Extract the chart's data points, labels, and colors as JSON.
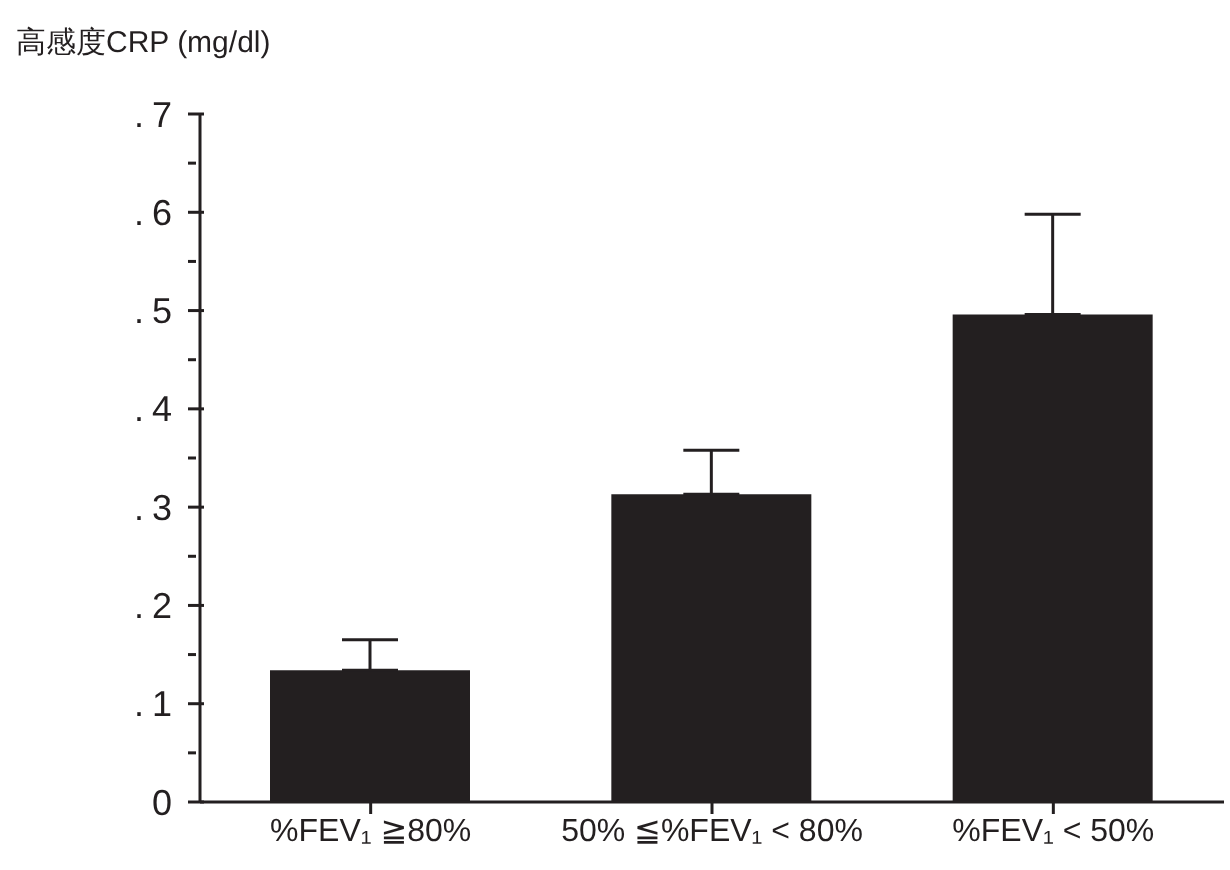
{
  "chart_data": {
    "type": "bar",
    "ylabel": "高感度CRP (mg/dl)",
    "categories": [
      "%FEV₁ ≧80%",
      "50% ≦%FEV₁ < 80%",
      "%FEV₁ < 50%"
    ],
    "values": [
      0.134,
      0.313,
      0.496
    ],
    "errors": [
      [
        0.134,
        0.165
      ],
      [
        0.313,
        0.358
      ],
      [
        0.496,
        0.598
      ]
    ],
    "color": "#231f20",
    "ylim": [
      0,
      0.7
    ],
    "yticks": [
      {
        "value": 0,
        "label": "0"
      },
      {
        "value": 0.05,
        "label": null
      },
      {
        "value": 0.1,
        "label": ".1"
      },
      {
        "value": 0.15,
        "label": null
      },
      {
        "value": 0.2,
        "label": ".2"
      },
      {
        "value": 0.25,
        "label": null
      },
      {
        "value": 0.3,
        "label": ".3"
      },
      {
        "value": 0.35,
        "label": null
      },
      {
        "value": 0.4,
        "label": ".4"
      },
      {
        "value": 0.45,
        "label": null
      },
      {
        "value": 0.5,
        "label": ".5"
      },
      {
        "value": 0.55,
        "label": null
      },
      {
        "value": 0.6,
        "label": ".6"
      },
      {
        "value": 0.65,
        "label": null
      },
      {
        "value": 0.7,
        "label": ".7"
      }
    ],
    "grid": false,
    "legend": false
  }
}
